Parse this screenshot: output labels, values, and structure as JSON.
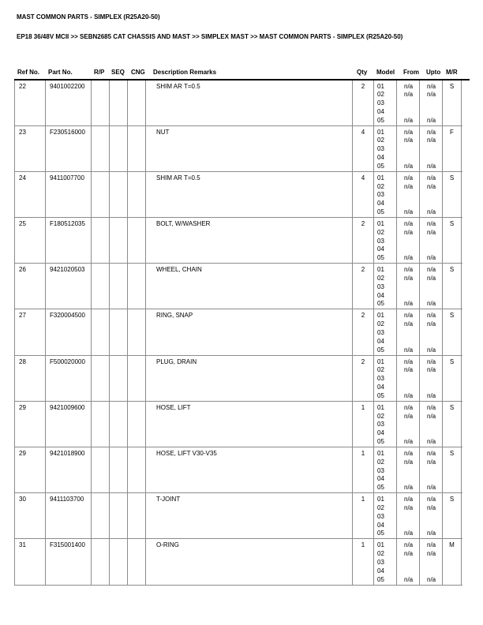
{
  "page": {
    "title": "MAST COMMON PARTS - SIMPLEX (R25A20-50)",
    "breadcrumb": "EP18 36/48V MCII >> SEBN2685 CAT CHASSIS AND MAST >> SIMPLEX MAST >> MAST COMMON PARTS - SIMPLEX (R25A20-50)"
  },
  "colors": {
    "text": "#000000",
    "background": "#ffffff",
    "cell_border": "#8c8c8c",
    "header_rule": "#000000"
  },
  "table": {
    "headers": {
      "ref": "Ref No.",
      "part": "Part No.",
      "rp": "R/P",
      "seq": "SEQ",
      "cng": "CNG",
      "desc": "Description Remarks",
      "qty": "Qty",
      "model": "Model",
      "from": "From",
      "upto": "Upto",
      "mr": "M/R"
    },
    "rows": [
      {
        "ref": "22",
        "part": "9401002200",
        "rp": "",
        "seq": "",
        "cng": "",
        "desc": "SHIM AR T=0.5",
        "qty": "2",
        "models": [
          "01",
          "02",
          "03",
          "04",
          "05"
        ],
        "from": [
          "n/a",
          "n/a",
          "",
          "",
          "n/a"
        ],
        "upto": [
          "n/a",
          "n/a",
          "",
          "",
          "n/a"
        ],
        "mr": "S"
      },
      {
        "ref": "23",
        "part": "F230516000",
        "rp": "",
        "seq": "",
        "cng": "",
        "desc": "NUT",
        "qty": "4",
        "models": [
          "01",
          "02",
          "03",
          "04",
          "05"
        ],
        "from": [
          "n/a",
          "n/a",
          "",
          "",
          "n/a"
        ],
        "upto": [
          "n/a",
          "n/a",
          "",
          "",
          "n/a"
        ],
        "mr": "F"
      },
      {
        "ref": "24",
        "part": "9411007700",
        "rp": "",
        "seq": "",
        "cng": "",
        "desc": "SHIM AR T=0.5",
        "qty": "4",
        "models": [
          "01",
          "02",
          "03",
          "04",
          "05"
        ],
        "from": [
          "n/a",
          "n/a",
          "",
          "",
          "n/a"
        ],
        "upto": [
          "n/a",
          "n/a",
          "",
          "",
          "n/a"
        ],
        "mr": "S"
      },
      {
        "ref": "25",
        "part": "F180512035",
        "rp": "",
        "seq": "",
        "cng": "",
        "desc": "BOLT, W/WASHER",
        "qty": "2",
        "models": [
          "01",
          "02",
          "03",
          "04",
          "05"
        ],
        "from": [
          "n/a",
          "n/a",
          "",
          "",
          "n/a"
        ],
        "upto": [
          "n/a",
          "n/a",
          "",
          "",
          "n/a"
        ],
        "mr": "S"
      },
      {
        "ref": "26",
        "part": "9421020503",
        "rp": "",
        "seq": "",
        "cng": "",
        "desc": "WHEEL, CHAIN",
        "qty": "2",
        "models": [
          "01",
          "02",
          "03",
          "04",
          "05"
        ],
        "from": [
          "n/a",
          "n/a",
          "",
          "",
          "n/a"
        ],
        "upto": [
          "n/a",
          "n/a",
          "",
          "",
          "n/a"
        ],
        "mr": "S"
      },
      {
        "ref": "27",
        "part": "F320004500",
        "rp": "",
        "seq": "",
        "cng": "",
        "desc": "RING, SNAP",
        "qty": "2",
        "models": [
          "01",
          "02",
          "03",
          "04",
          "05"
        ],
        "from": [
          "n/a",
          "n/a",
          "",
          "",
          "n/a"
        ],
        "upto": [
          "n/a",
          "n/a",
          "",
          "",
          "n/a"
        ],
        "mr": "S"
      },
      {
        "ref": "28",
        "part": "F500020000",
        "rp": "",
        "seq": "",
        "cng": "",
        "desc": "PLUG, DRAIN",
        "qty": "2",
        "models": [
          "01",
          "02",
          "03",
          "04",
          "05"
        ],
        "from": [
          "n/a",
          "n/a",
          "",
          "",
          "n/a"
        ],
        "upto": [
          "n/a",
          "n/a",
          "",
          "",
          "n/a"
        ],
        "mr": "S"
      },
      {
        "ref": "29",
        "part": "9421009600",
        "rp": "",
        "seq": "",
        "cng": "",
        "desc": "HOSE, LIFT",
        "qty": "1",
        "models": [
          "01",
          "02",
          "03",
          "04",
          "05"
        ],
        "from": [
          "n/a",
          "n/a",
          "",
          "",
          "n/a"
        ],
        "upto": [
          "n/a",
          "n/a",
          "",
          "",
          "n/a"
        ],
        "mr": "S"
      },
      {
        "ref": "29",
        "part": "9421018900",
        "rp": "",
        "seq": "",
        "cng": "",
        "desc": "HOSE, LIFT V30-V35",
        "qty": "1",
        "models": [
          "01",
          "02",
          "03",
          "04",
          "05"
        ],
        "from": [
          "n/a",
          "n/a",
          "",
          "",
          "n/a"
        ],
        "upto": [
          "n/a",
          "n/a",
          "",
          "",
          "n/a"
        ],
        "mr": "S"
      },
      {
        "ref": "30",
        "part": "9411103700",
        "rp": "",
        "seq": "",
        "cng": "",
        "desc": "T-JOINT",
        "qty": "1",
        "models": [
          "01",
          "02",
          "03",
          "04",
          "05"
        ],
        "from": [
          "n/a",
          "n/a",
          "",
          "",
          "n/a"
        ],
        "upto": [
          "n/a",
          "n/a",
          "",
          "",
          "n/a"
        ],
        "mr": "S"
      },
      {
        "ref": "31",
        "part": "F315001400",
        "rp": "",
        "seq": "",
        "cng": "",
        "desc": "O-RING",
        "qty": "1",
        "models": [
          "01",
          "02",
          "03",
          "04",
          "05"
        ],
        "from": [
          "n/a",
          "n/a",
          "",
          "",
          "n/a"
        ],
        "upto": [
          "n/a",
          "n/a",
          "",
          "",
          "n/a"
        ],
        "mr": "M"
      }
    ]
  }
}
